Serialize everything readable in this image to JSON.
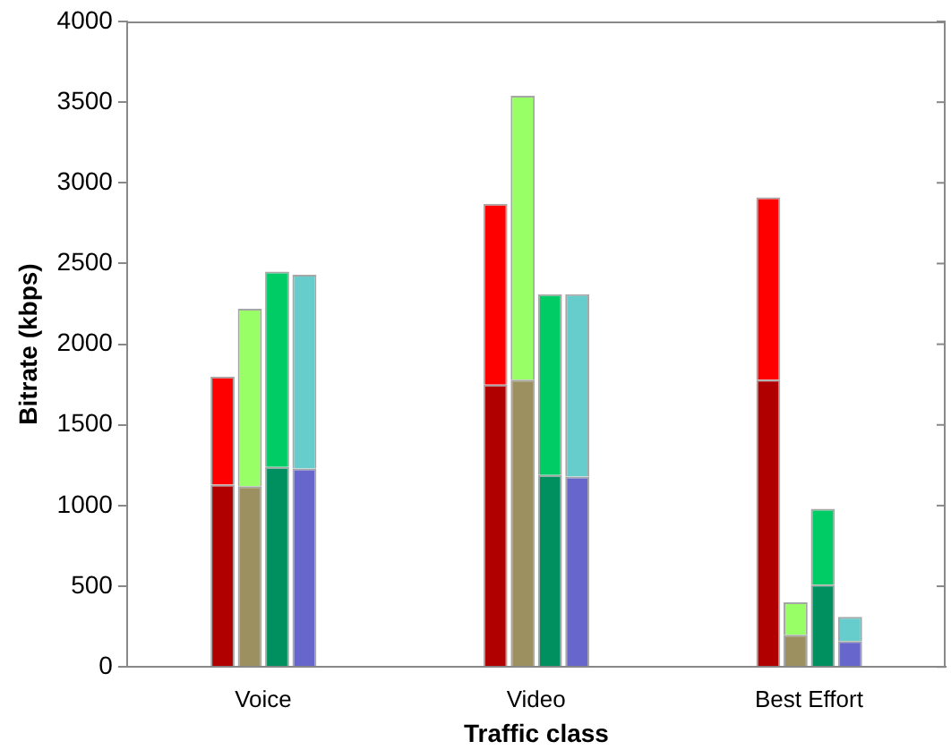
{
  "chart_data": {
    "type": "bar",
    "xlabel": "Traffic class",
    "ylabel": "Bitrate (kbps)",
    "stacked": true,
    "categories": [
      null,
      null,
      null,
      null,
      "Voice",
      null,
      null,
      null,
      null,
      null,
      null,
      null,
      null,
      null,
      "Video",
      null,
      null,
      null,
      null,
      null,
      null,
      null,
      null,
      null,
      "Best Effort",
      null,
      null,
      null,
      null,
      null
    ],
    "series": [
      {
        "colors": [
          null,
          null,
          null,
          "#b00000",
          "#9c9060",
          "#009060",
          "#6666cc",
          null,
          null,
          null,
          null,
          null,
          null,
          "#b00000",
          "#9c9060",
          "#009060",
          "#6666cc",
          null,
          null,
          null,
          null,
          null,
          null,
          "#b00000",
          "#9c9060",
          "#009060",
          "#6666cc",
          null,
          null,
          null
        ],
        "values": [
          null,
          null,
          null,
          1130,
          1120,
          1240,
          1230,
          null,
          null,
          null,
          null,
          null,
          null,
          1750,
          1780,
          1190,
          1180,
          null,
          null,
          null,
          null,
          null,
          null,
          1780,
          200,
          510,
          160,
          null,
          null,
          null
        ]
      },
      {
        "colors": [
          null,
          null,
          null,
          "#ff0000",
          "#99ff66",
          "#00cc66",
          "#66cccc",
          null,
          null,
          null,
          null,
          null,
          null,
          "#ff0000",
          "#99ff66",
          "#00cc66",
          "#66cccc",
          null,
          null,
          null,
          null,
          null,
          null,
          "#ff0000",
          "#99ff66",
          "#00cc66",
          "#66cccc",
          null,
          null,
          null
        ],
        "values": [
          null,
          null,
          null,
          670,
          1100,
          1210,
          1200,
          null,
          null,
          null,
          null,
          null,
          null,
          1120,
          1760,
          1120,
          1130,
          null,
          null,
          null,
          null,
          null,
          null,
          1130,
          200,
          470,
          150,
          null,
          null,
          null
        ]
      }
    ],
    "ylim": [
      0,
      4000
    ],
    "yticks": [
      0,
      500,
      1000,
      1500,
      2000,
      2500,
      3000,
      3500,
      4000
    ],
    "grid": false,
    "legend": false
  }
}
